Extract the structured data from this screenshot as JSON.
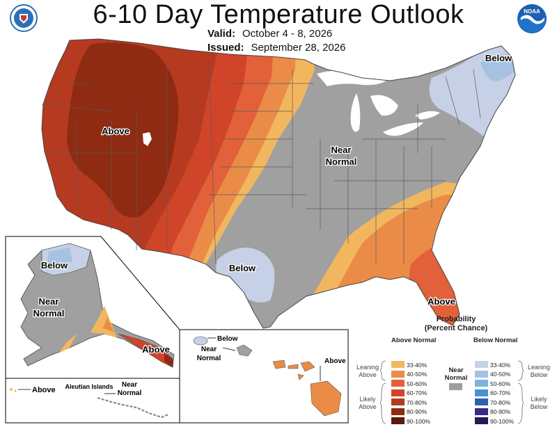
{
  "header": {
    "title": "6-10 Day Temperature Outlook",
    "valid_label": "Valid:",
    "valid_value": "October 4 - 8, 2026",
    "issued_label": "Issued:",
    "issued_value": "September 28, 2026"
  },
  "logos": {
    "left_icon": "commerce-seal-icon",
    "right_icon": "noaa-logo-icon",
    "right_text": "NOAA"
  },
  "map_labels": {
    "conus_above": "Above",
    "conus_near_1": "Near",
    "conus_near_2": "Normal",
    "conus_below_ne": "Below",
    "conus_below_tx": "Below",
    "conus_above_fl": "Above",
    "ak_below": "Below",
    "ak_near_1": "Near",
    "ak_near_2": "Normal",
    "ak_above": "Above",
    "aleutian_title": "Aleutian Islands",
    "aleutian_above": "Above",
    "aleutian_near_1": "Near",
    "aleutian_near_2": "Normal",
    "hi_below": "Below",
    "hi_near_1": "Near",
    "hi_near_2": "Normal",
    "hi_above": "Above"
  },
  "legend": {
    "title_1": "Probability",
    "title_2": "(Percent Chance)",
    "above_head": "Above Normal",
    "below_head": "Below Normal",
    "near_1": "Near",
    "near_2": "Normal",
    "near_color": "#9e9e9e",
    "leaning_above_1": "Leaning",
    "leaning_above_2": "Above",
    "likely_above_1": "Likely",
    "likely_above_2": "Above",
    "leaning_below_1": "Leaning",
    "leaning_below_2": "Below",
    "likely_below_1": "Likely",
    "likely_below_2": "Below",
    "above_bins": [
      {
        "label": "33-40%",
        "color": "#f2b75e"
      },
      {
        "label": "40-50%",
        "color": "#ea8c47"
      },
      {
        "label": "50-60%",
        "color": "#e2613a"
      },
      {
        "label": "60-70%",
        "color": "#d0452a"
      },
      {
        "label": "70-80%",
        "color": "#b63a20"
      },
      {
        "label": "80-90%",
        "color": "#8e2b12"
      },
      {
        "label": "90-100%",
        "color": "#5c1a08"
      }
    ],
    "below_bins": [
      {
        "label": "33-40%",
        "color": "#c6d0e6"
      },
      {
        "label": "40-50%",
        "color": "#a7c1e2"
      },
      {
        "label": "50-60%",
        "color": "#7cb3e0"
      },
      {
        "label": "60-70%",
        "color": "#4b8fd0"
      },
      {
        "label": "70-80%",
        "color": "#2a62b0"
      },
      {
        "label": "80-90%",
        "color": "#3a2a86"
      },
      {
        "label": "90-100%",
        "color": "#271a54"
      }
    ]
  }
}
